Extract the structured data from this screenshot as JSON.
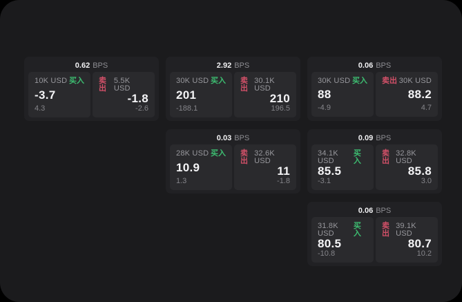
{
  "labels": {
    "unit": "BPS",
    "buy": "买入",
    "sell": "卖出"
  },
  "colors": {
    "page_background": "#000000",
    "window_background": "#1b1b1d",
    "card_background": "#212124",
    "tile_background": "#2a2a2d",
    "buy_green": "#3dbd71",
    "sell_red": "#d15068",
    "primary_text": "#f4f4f6",
    "secondary_text": "#98989d",
    "tertiary_text": "#85858a"
  },
  "cards": [
    {
      "bps": "0.62",
      "buy": {
        "amount": "10K USD",
        "price": "-3.7",
        "delta": "4.3"
      },
      "sell": {
        "amount": "5.5K USD",
        "price": "-1.8",
        "delta": "-2.6"
      }
    },
    {
      "bps": "2.92",
      "buy": {
        "amount": "30K USD",
        "price": "201",
        "delta": "-188.1"
      },
      "sell": {
        "amount": "30.1K USD",
        "price": "210",
        "delta": "196.5"
      }
    },
    {
      "bps": "0.06",
      "buy": {
        "amount": "30K USD",
        "price": "88",
        "delta": "-4.9"
      },
      "sell": {
        "amount": "30K USD",
        "price": "88.2",
        "delta": "4.7"
      }
    },
    {
      "bps": "0.03",
      "buy": {
        "amount": "28K USD",
        "price": "10.9",
        "delta": "1.3"
      },
      "sell": {
        "amount": "32.6K USD",
        "price": "11",
        "delta": "-1.8"
      }
    },
    {
      "bps": "0.09",
      "buy": {
        "amount": "34.1K USD",
        "price": "85.5",
        "delta": "-3.1"
      },
      "sell": {
        "amount": "32.8K USD",
        "price": "85.8",
        "delta": "3.0"
      }
    },
    {
      "bps": "0.06",
      "buy": {
        "amount": "31.8K USD",
        "price": "80.5",
        "delta": "-10.8"
      },
      "sell": {
        "amount": "39.1K USD",
        "price": "80.7",
        "delta": "10.2"
      }
    }
  ]
}
